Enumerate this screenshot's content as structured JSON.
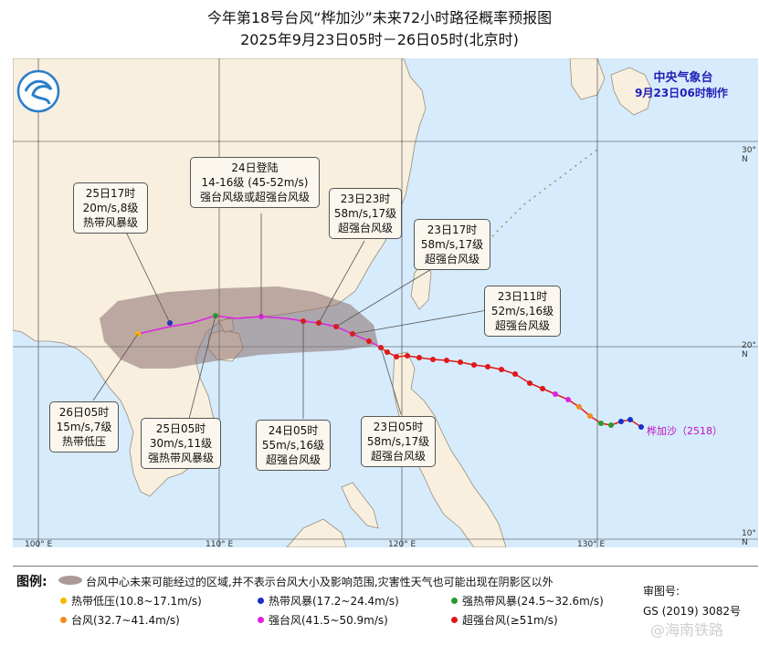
{
  "title": {
    "line1": "今年第18号台风“桦加沙”未来72小时路径概率预报图",
    "line2": "2025年9月23日05时－26日05时(北京时)"
  },
  "agency": {
    "name": "中央气象台",
    "issued": "9月23日06时制作"
  },
  "storm_label": "桦加沙（2518）",
  "axes": {
    "longitude_ticks": [
      "100° E",
      "110° E",
      "120° E",
      "130° E"
    ],
    "latitude_ticks": [
      "30° N",
      "20° N",
      "10° N"
    ]
  },
  "callouts": [
    {
      "id": "c-25-17",
      "lines": [
        "25日17时",
        "20m/s,8级",
        "热带风暴级"
      ]
    },
    {
      "id": "c-24-landfall",
      "lines": [
        "24日登陆",
        "14-16级 (45-52m/s)",
        "强台风级或超强台风级"
      ]
    },
    {
      "id": "c-23-23",
      "lines": [
        "23日23时",
        "58m/s,17级",
        "超强台风级"
      ]
    },
    {
      "id": "c-23-17",
      "lines": [
        "23日17时",
        "58m/s,17级",
        "超强台风级"
      ]
    },
    {
      "id": "c-23-11",
      "lines": [
        "23日11时",
        "52m/s,16级",
        "超强台风级"
      ]
    },
    {
      "id": "c-26-05",
      "lines": [
        "26日05时",
        "15m/s,7级",
        "热带低压"
      ]
    },
    {
      "id": "c-25-05",
      "lines": [
        "25日05时",
        "30m/s,11级",
        "强热带风暴级"
      ]
    },
    {
      "id": "c-24-05",
      "lines": [
        "24日05时",
        "55m/s,16级",
        "超强台风级"
      ]
    },
    {
      "id": "c-23-05",
      "lines": [
        "23日05时",
        "58m/s,17级",
        "超强台风级"
      ]
    }
  ],
  "legend": {
    "title": "图例:",
    "cone_text": "台风中心未来可能经过的区域,并不表示台风大小及影响范围,灾害性天气也可能出现在阴影区以外",
    "items": [
      {
        "label": "热带低压(10.8~17.1m/s)",
        "color": "#f5b800"
      },
      {
        "label": "热带风暴(17.2~24.4m/s)",
        "color": "#1a2ec8"
      },
      {
        "label": "强热带风暴(24.5~32.6m/s)",
        "color": "#2a9a2a"
      },
      {
        "label": "台风(32.7~41.4m/s)",
        "color": "#f08c1e"
      },
      {
        "label": "强台风(41.5~50.9m/s)",
        "color": "#e020e0"
      },
      {
        "label": "超强台风(≥51m/s)",
        "color": "#e01818"
      }
    ]
  },
  "review": {
    "label": "审图号:",
    "number": "GS (2019) 3082号"
  },
  "watermark": "@海南铁路",
  "colors": {
    "sea": "#d6ebfb",
    "land": "#f8efdf",
    "cone": "#8a6e6e",
    "track": "#e020e0"
  }
}
